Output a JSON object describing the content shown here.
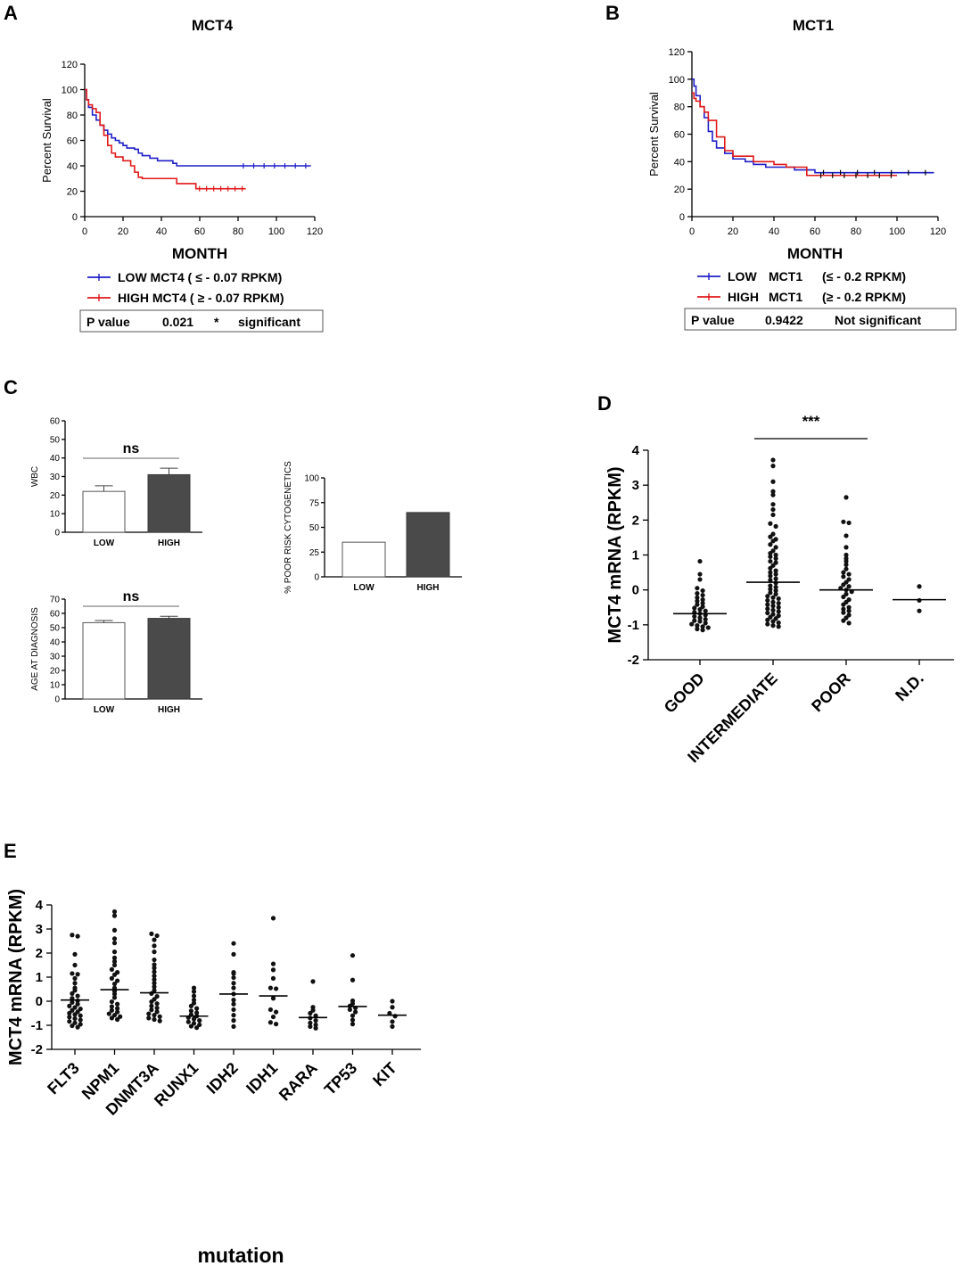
{
  "chart_data": [
    {
      "panel": "A",
      "type": "line",
      "title": "MCT4",
      "xlabel": "MONTH",
      "ylabel": "Percent Survival",
      "xlim": [
        0,
        120
      ],
      "ylim": [
        0,
        120
      ],
      "xticks": [
        "0",
        "20",
        "40",
        "60",
        "80",
        "100",
        "120"
      ],
      "yticks": [
        "0",
        "20",
        "40",
        "60",
        "80",
        "100",
        "120"
      ],
      "series": [
        {
          "name": "LOW MCT4 ( ≤ - 0.07 RPKM)",
          "color": "#1f1fc8",
          "x": [
            0,
            1,
            2,
            4,
            6,
            8,
            10,
            12,
            14,
            16,
            18,
            20,
            22,
            26,
            28,
            30,
            34,
            38,
            44,
            46,
            48,
            60,
            80,
            100,
            118
          ],
          "y": [
            100,
            92,
            86,
            80,
            76,
            72,
            68,
            65,
            62,
            60,
            58,
            56,
            54,
            53,
            50,
            48,
            46,
            44,
            44,
            42,
            40,
            40,
            40,
            40,
            40
          ]
        },
        {
          "name": "HIGH MCT4 ( ≥ - 0.07 RPKM)",
          "color": "#e01919",
          "x": [
            0,
            1,
            2,
            4,
            6,
            8,
            10,
            12,
            14,
            16,
            20,
            24,
            26,
            28,
            30,
            40,
            48,
            50,
            54,
            58,
            70,
            84
          ],
          "y": [
            100,
            92,
            88,
            85,
            82,
            72,
            64,
            56,
            50,
            47,
            44,
            40,
            35,
            31,
            30,
            30,
            26,
            26,
            26,
            22,
            22,
            22
          ]
        }
      ],
      "annotation": {
        "label": "P value",
        "value": "0.021",
        "star": "*",
        "text": "significant"
      }
    },
    {
      "panel": "B",
      "type": "line",
      "title": "MCT1",
      "xlabel": "MONTH",
      "ylabel": "Percent Survival",
      "xlim": [
        0,
        120
      ],
      "ylim": [
        0,
        120
      ],
      "xticks": [
        "0",
        "20",
        "40",
        "60",
        "80",
        "100",
        "120"
      ],
      "yticks": [
        "0",
        "20",
        "40",
        "60",
        "80",
        "100",
        "120"
      ],
      "series": [
        {
          "name_prefix": "LOW",
          "name_gene": "MCT1",
          "name_range": "(≤ - 0.2 RPKM)",
          "color": "#1f1fc8",
          "x": [
            0,
            1,
            2,
            4,
            6,
            8,
            10,
            12,
            16,
            20,
            26,
            30,
            36,
            44,
            50,
            60,
            100,
            118
          ],
          "y": [
            100,
            95,
            88,
            80,
            72,
            62,
            55,
            50,
            46,
            42,
            40,
            38,
            36,
            36,
            34,
            32,
            32,
            32
          ]
        },
        {
          "name_prefix": "HIGH",
          "name_gene": "MCT1",
          "name_range": "(≥ - 0.2 RPKM)",
          "color": "#e01919",
          "x": [
            0,
            1,
            2,
            4,
            6,
            8,
            12,
            16,
            20,
            30,
            40,
            46,
            56,
            60,
            70,
            100
          ],
          "y": [
            90,
            86,
            84,
            80,
            76,
            70,
            58,
            48,
            44,
            40,
            38,
            36,
            30,
            30,
            30,
            30
          ]
        }
      ],
      "annotation": {
        "label": "P value",
        "value": "0.9422",
        "text": "Not significant"
      }
    },
    {
      "panel": "C",
      "type": "bar",
      "subplots": [
        {
          "ylabel": "WBC",
          "categories": [
            "LOW",
            "HIGH"
          ],
          "values": [
            22,
            31
          ],
          "errors": [
            3,
            3.5
          ],
          "ylim": [
            0,
            60
          ],
          "yticks": [
            "0",
            "10",
            "20",
            "30",
            "40",
            "50",
            "60"
          ],
          "sig": "ns"
        },
        {
          "ylabel": "AGE AT DIAGNOSIS",
          "categories": [
            "LOW",
            "HIGH"
          ],
          "values": [
            53.5,
            56.5
          ],
          "errors": [
            1.5,
            1.5
          ],
          "ylim": [
            0,
            70
          ],
          "yticks": [
            "0",
            "10",
            "20",
            "30",
            "40",
            "50",
            "60",
            "70"
          ],
          "sig": "ns"
        },
        {
          "ylabel": "% POOR RISK CYTOGENETICS",
          "categories": [
            "LOW",
            "HIGH"
          ],
          "values": [
            35,
            65
          ],
          "errors": [
            0,
            0
          ],
          "ylim": [
            0,
            100
          ],
          "yticks": [
            "0",
            "25",
            "50",
            "75",
            "100"
          ],
          "sig": ""
        }
      ]
    },
    {
      "panel": "D",
      "type": "scatter",
      "ylabel": "MCT4 mRNA (RPKM)",
      "ylim": [
        -2,
        4
      ],
      "yticks": [
        "-2",
        "-1",
        "0",
        "1",
        "2",
        "3",
        "4"
      ],
      "significance": "***",
      "groups": [
        {
          "name": "GOOD",
          "mean": -0.68,
          "values": [
            0.82,
            0.45,
            0.3,
            0.05,
            -0.02,
            -0.1,
            -0.15,
            -0.22,
            -0.28,
            -0.32,
            -0.38,
            -0.42,
            -0.48,
            -0.52,
            -0.56,
            -0.6,
            -0.64,
            -0.68,
            -0.72,
            -0.76,
            -0.8,
            -0.84,
            -0.88,
            -0.9,
            -0.95,
            -0.98,
            -1.02,
            -1.05,
            -1.08,
            -1.12,
            -1.15
          ]
        },
        {
          "name": "INTERMEDIATE",
          "mean": 0.22,
          "values": [
            3.72,
            3.55,
            3.1,
            2.82,
            2.72,
            2.45,
            2.3,
            2.15,
            1.9,
            1.82,
            1.6,
            1.52,
            1.45,
            1.4,
            1.3,
            1.22,
            1.12,
            1.05,
            1.0,
            0.95,
            0.9,
            0.82,
            0.78,
            0.7,
            0.62,
            0.55,
            0.5,
            0.45,
            0.4,
            0.32,
            0.28,
            0.2,
            0.12,
            0.08,
            0.02,
            -0.02,
            -0.08,
            -0.12,
            -0.18,
            -0.22,
            -0.25,
            -0.3,
            -0.35,
            -0.38,
            -0.42,
            -0.46,
            -0.5,
            -0.54,
            -0.58,
            -0.62,
            -0.66,
            -0.7,
            -0.74,
            -0.78,
            -0.82,
            -0.86,
            -0.9,
            -0.94,
            -0.98,
            -1.02,
            -1.05
          ]
        },
        {
          "name": "POOR",
          "mean": 0.0,
          "values": [
            2.65,
            1.95,
            1.92,
            1.55,
            1.22,
            1.0,
            0.9,
            0.82,
            0.72,
            0.6,
            0.5,
            0.45,
            0.38,
            0.3,
            0.22,
            0.15,
            0.1,
            0.05,
            0.0,
            -0.05,
            -0.12,
            -0.2,
            -0.28,
            -0.35,
            -0.42,
            -0.5,
            -0.55,
            -0.6,
            -0.65,
            -0.72,
            -0.8,
            -0.88,
            -0.95
          ]
        },
        {
          "name": "N.D.",
          "mean": -0.28,
          "values": [
            0.1,
            -0.3,
            -0.6
          ]
        }
      ]
    },
    {
      "panel": "E",
      "type": "scatter",
      "ylabel": "MCT4 mRNA (RPKM)",
      "xlabel": "mutation",
      "ylim": [
        -2,
        4
      ],
      "yticks": [
        "-2",
        "-1",
        "0",
        "1",
        "2",
        "3",
        "4"
      ],
      "groups": [
        {
          "name": "FLT3",
          "mean": 0.05,
          "values": [
            2.75,
            2.7,
            1.95,
            1.5,
            1.15,
            1.12,
            0.95,
            0.75,
            0.55,
            0.45,
            0.32,
            0.22,
            0.12,
            0.02,
            -0.05,
            -0.12,
            -0.2,
            -0.26,
            -0.32,
            -0.38,
            -0.44,
            -0.5,
            -0.55,
            -0.6,
            -0.66,
            -0.72,
            -0.78,
            -0.84,
            -0.9,
            -0.96,
            -1.02,
            -1.08
          ]
        },
        {
          "name": "NPM1",
          "mean": 0.48,
          "values": [
            3.72,
            3.55,
            2.95,
            2.6,
            2.42,
            2.05,
            1.8,
            1.65,
            1.5,
            1.32,
            1.2,
            1.1,
            0.95,
            0.85,
            0.72,
            0.55,
            0.42,
            0.3,
            0.15,
            -0.02,
            -0.12,
            -0.22,
            -0.3,
            -0.38,
            -0.45,
            -0.52,
            -0.58,
            -0.64,
            -0.7,
            -0.76
          ]
        },
        {
          "name": "DNMT3A",
          "mean": 0.35,
          "values": [
            2.8,
            2.72,
            2.55,
            2.3,
            2.05,
            1.72,
            1.52,
            1.38,
            1.22,
            1.05,
            0.9,
            0.75,
            0.6,
            0.45,
            0.32,
            0.2,
            0.08,
            -0.02,
            -0.1,
            -0.2,
            -0.28,
            -0.36,
            -0.44,
            -0.52,
            -0.58,
            -0.64,
            -0.7,
            -0.76,
            -0.82
          ]
        },
        {
          "name": "RUNX1",
          "mean": -0.62,
          "values": [
            0.55,
            0.4,
            0.22,
            0.05,
            -0.08,
            -0.2,
            -0.3,
            -0.4,
            -0.48,
            -0.56,
            -0.62,
            -0.68,
            -0.74,
            -0.8,
            -0.86,
            -0.92,
            -0.98,
            -1.04,
            -1.1
          ]
        },
        {
          "name": "IDH2",
          "mean": 0.3,
          "values": [
            2.4,
            1.95,
            1.2,
            1.15,
            0.98,
            0.75,
            0.55,
            0.3,
            0.05,
            -0.12,
            -0.35,
            -0.58,
            -0.8,
            -1.05
          ]
        },
        {
          "name": "IDH1",
          "mean": 0.22,
          "values": [
            3.45,
            1.55,
            1.3,
            0.95,
            0.55,
            0.52,
            0.12,
            -0.35,
            -0.45,
            -0.65,
            -0.88,
            -0.95
          ]
        },
        {
          "name": "RARA",
          "mean": -0.68,
          "values": [
            0.82,
            -0.25,
            -0.38,
            -0.5,
            -0.6,
            -0.7,
            -0.8,
            -0.9,
            -0.98,
            -1.05,
            -1.12
          ]
        },
        {
          "name": "TP53",
          "mean": -0.22,
          "values": [
            1.9,
            0.88,
            0.02,
            -0.1,
            -0.2,
            -0.28,
            -0.35,
            -0.45,
            -0.6,
            -0.78,
            -0.95
          ]
        },
        {
          "name": "KIT",
          "mean": -0.58,
          "values": [
            0.0,
            -0.25,
            -0.5,
            -0.62,
            -0.85,
            -1.05
          ]
        }
      ]
    }
  ]
}
